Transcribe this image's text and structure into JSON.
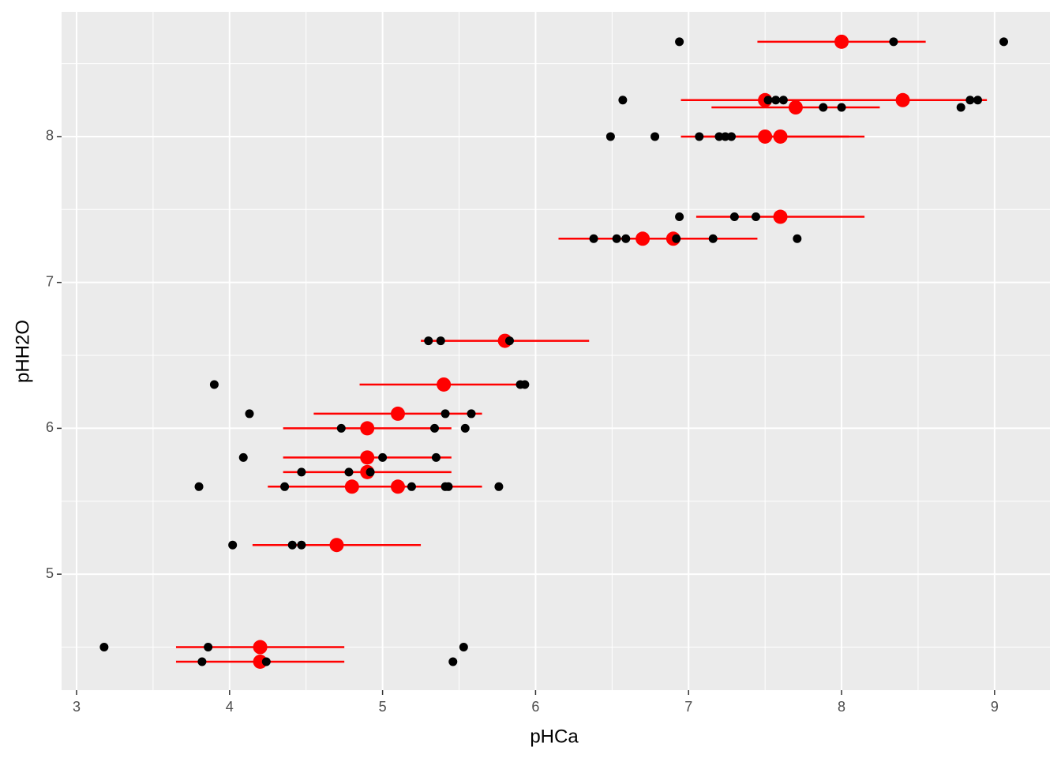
{
  "chart_data": {
    "type": "scatter",
    "x_label": "pHCa",
    "y_label": "pHH2O",
    "xlim": [
      2.902,
      9.362
    ],
    "ylim": [
      4.205,
      8.855
    ],
    "xticks": [
      3,
      4,
      5,
      6,
      7,
      8,
      9
    ],
    "yticks": [
      5,
      6,
      7,
      8
    ],
    "x_minor_ticks": [
      3.5,
      4.5,
      5.5,
      6.5,
      7.5,
      8.5
    ],
    "y_minor_ticks": [
      4.5,
      5.5,
      6.5,
      7.5,
      8.5
    ],
    "grid": true,
    "series": [
      {
        "color": "#000000",
        "x": [
          6.94,
          8.34,
          9.06,
          6.57,
          7.52,
          7.57,
          7.62,
          8.84,
          8.89,
          7.88,
          8.0,
          8.78,
          6.49,
          6.78,
          7.07,
          7.2,
          7.24,
          7.28,
          6.94,
          7.3,
          7.44,
          6.38,
          6.53,
          6.59,
          6.92,
          7.16,
          7.71,
          5.3,
          5.38,
          5.83,
          3.9,
          5.9,
          5.93,
          4.13,
          5.41,
          5.58,
          4.73,
          5.34,
          5.54,
          4.09,
          5.0,
          5.35,
          4.47,
          4.78,
          4.92,
          3.8,
          4.36,
          5.19,
          5.41,
          5.43,
          5.76,
          4.02,
          4.41,
          4.47,
          3.18,
          3.86,
          5.53,
          3.82,
          4.24,
          5.46
        ],
        "values": [
          8.65,
          8.65,
          8.65,
          8.25,
          8.25,
          8.25,
          8.25,
          8.25,
          8.25,
          8.2,
          8.2,
          8.2,
          8,
          8,
          8,
          8,
          8,
          8,
          7.45,
          7.45,
          7.45,
          7.3,
          7.3,
          7.3,
          7.3,
          7.3,
          7.3,
          6.6,
          6.6,
          6.6,
          6.3,
          6.3,
          6.3,
          6.1,
          6.1,
          6.1,
          6,
          6,
          6,
          5.8,
          5.8,
          5.8,
          5.7,
          5.7,
          5.7,
          5.6,
          5.6,
          5.6,
          5.6,
          5.6,
          5.6,
          5.2,
          5.2,
          5.2,
          4.5,
          4.5,
          4.5,
          4.4,
          4.4,
          4.4
        ]
      },
      {
        "color": "#ff0000",
        "x": [
          8.0,
          7.5,
          8.4,
          7.7,
          7.5,
          7.6,
          7.6,
          6.7,
          6.9,
          5.8,
          5.4,
          5.1,
          4.9,
          4.9,
          4.9,
          4.8,
          5.1,
          4.7,
          4.2,
          4.2
        ],
        "values": [
          8.65,
          8.25,
          8.25,
          8.2,
          8,
          8,
          7.45,
          7.3,
          7.3,
          6.6,
          6.3,
          6.1,
          6,
          5.8,
          5.7,
          5.6,
          5.6,
          5.2,
          4.5,
          4.4
        ],
        "xerr": [
          0.55,
          0.55,
          0.55,
          0.55,
          0.55,
          0.55,
          0.55,
          0.55,
          0.55,
          0.55,
          0.55,
          0.55,
          0.55,
          0.55,
          0.55,
          0.55,
          0.55,
          0.55,
          0.55,
          0.55
        ]
      }
    ]
  }
}
